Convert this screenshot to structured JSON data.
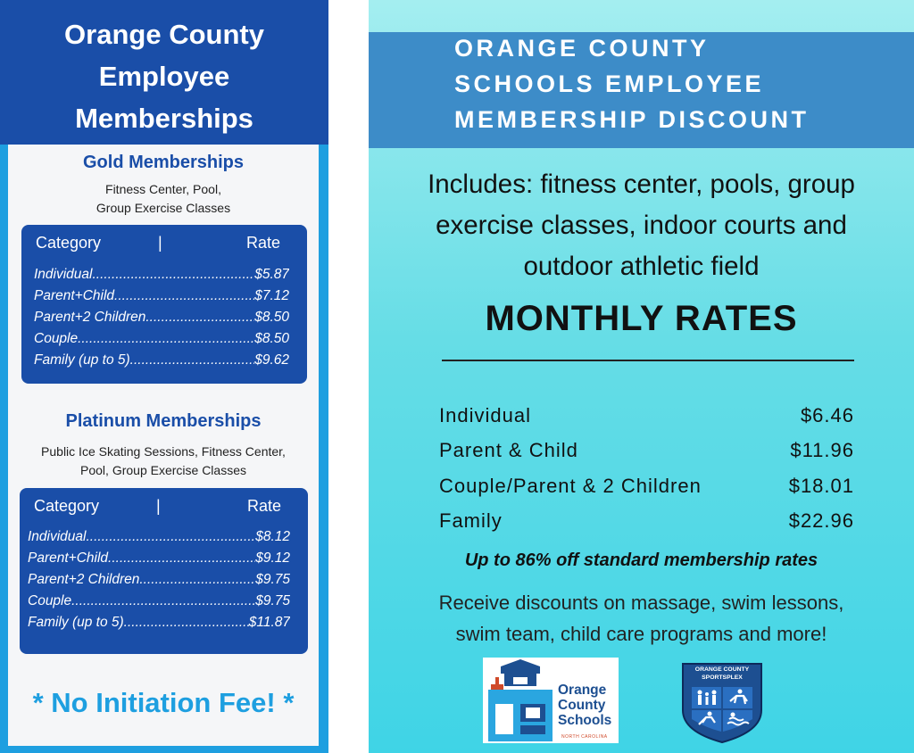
{
  "left": {
    "title_lines": [
      "Orange County",
      "Employee",
      "Memberships"
    ],
    "gold": {
      "title": "Gold Memberships",
      "subtitle_lines": [
        "Fitness Center, Pool,",
        "Group Exercise Classes"
      ],
      "header": {
        "category": "Category",
        "separator": "|",
        "rate": "Rate"
      },
      "rows": [
        {
          "name": "Individual",
          "price": "$5.87"
        },
        {
          "name": "Parent+Child",
          "price": "$7.12"
        },
        {
          "name": "Parent+2 Children",
          "price": "$8.50"
        },
        {
          "name": "Couple",
          "price": "$8.50"
        },
        {
          "name": "Family (up to 5)",
          "price": "$9.62"
        }
      ]
    },
    "platinum": {
      "title": "Platinum Memberships",
      "subtitle_lines": [
        "Public Ice Skating Sessions, Fitness Center,",
        "Pool, Group Exercise Classes"
      ],
      "header": {
        "category": "Category",
        "separator": "|",
        "rate": "Rate"
      },
      "rows": [
        {
          "name": "Individual",
          "price": "$8.12"
        },
        {
          "name": "Parent+Child",
          "price": "$9.12"
        },
        {
          "name": "Parent+2 Children",
          "price": "$9.75"
        },
        {
          "name": "Couple",
          "price": "$9.75"
        },
        {
          "name": "Family (up to 5)",
          "price": "$11.87"
        }
      ]
    },
    "footer": "* No Initiation Fee! *"
  },
  "right": {
    "title_lines": [
      "ORANGE COUNTY",
      "SCHOOLS EMPLOYEE",
      "MEMBERSHIP DISCOUNT"
    ],
    "includes_lines": [
      "Includes: fitness center, pools, group",
      "exercise classes, indoor courts and",
      "outdoor athletic field"
    ],
    "monthly_title": "MONTHLY RATES",
    "rates": [
      {
        "name": "Individual",
        "price": "$6.46"
      },
      {
        "name": "Parent & Child",
        "price": "$11.96"
      },
      {
        "name": "Couple/Parent & 2 Children",
        "price": "$18.01"
      },
      {
        "name": "Family",
        "price": "$22.96"
      }
    ],
    "discount_note": "Up to 86% off standard membership rates",
    "receive_lines": [
      "Receive discounts on massage, swim lessons,",
      "swim team, child care programs and more!"
    ]
  },
  "logos": {
    "ocs": {
      "lines": [
        "Orange",
        "County",
        "Schools"
      ],
      "tagline": "NORTH CAROLINA"
    },
    "sportsplex": {
      "lines": [
        "ORANGE COUNTY",
        "SPORTSPLEX"
      ]
    }
  },
  "colors": {
    "left_header": "#1a4ea8",
    "left_border": "#1e9fe0",
    "rate_box": "#1a4ea8",
    "right_header": "#3d8cc8",
    "right_bg_top": "#a4eef0",
    "right_bg_bottom": "#3fd4e6",
    "no_fee_text": "#1e9fe0"
  }
}
